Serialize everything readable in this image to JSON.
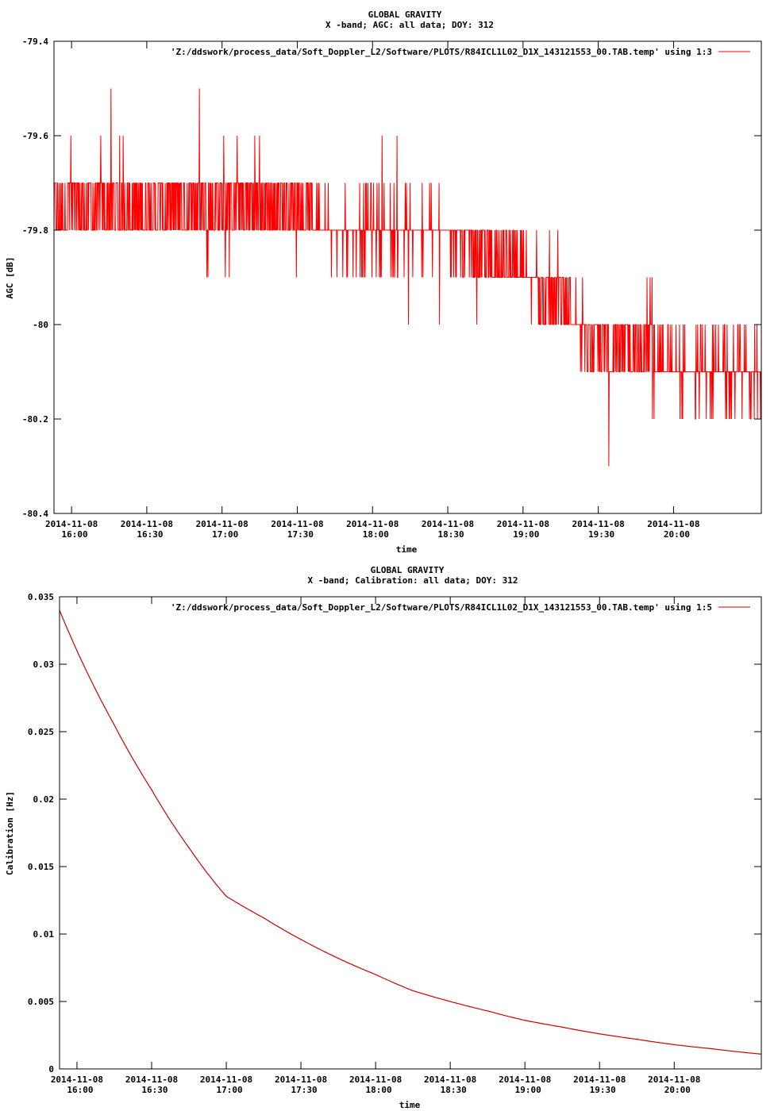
{
  "chart_data": [
    {
      "type": "line",
      "title": "GLOBAL GRAVITY",
      "subtitle": "X -band; AGC: all data; DOY: 312",
      "xlabel": "time",
      "ylabel": "AGC [dB]",
      "ylim": [
        -80.4,
        -79.4
      ],
      "y_ticks": [
        "-79.4",
        "-79.6",
        "-79.8",
        "-80",
        "-80.2",
        "-80.4"
      ],
      "y_tick_values": [
        -79.4,
        -79.6,
        -79.8,
        -80.0,
        -80.2,
        -80.4
      ],
      "xlim": [
        "2014-11-08 15:53",
        "2014-11-08 20:35"
      ],
      "x_tick_times": [
        "2014-11-08 16:00",
        "2014-11-08 16:30",
        "2014-11-08 17:00",
        "2014-11-08 17:30",
        "2014-11-08 18:00",
        "2014-11-08 18:30",
        "2014-11-08 19:00",
        "2014-11-08 19:30",
        "2014-11-08 20:00"
      ],
      "x_tick_dates": [
        "2014-11-08",
        "2014-11-08",
        "2014-11-08",
        "2014-11-08",
        "2014-11-08",
        "2014-11-08",
        "2014-11-08",
        "2014-11-08",
        "2014-11-08"
      ],
      "x_tick_hours": [
        "16:00",
        "16:30",
        "17:00",
        "17:30",
        "18:00",
        "18:30",
        "19:00",
        "19:30",
        "20:00"
      ],
      "legend": "'Z:/ddswork/process_data/Soft_Doppler_L2/Software/PLOTS/R84ICL1L02_D1X_143121553_00.TAB.temp' using 1:3",
      "legend_position": "top-right",
      "grid": false,
      "series_color": "#ff0000",
      "series": [
        {
          "x": [
            "15:53",
            "16:00",
            "16:15",
            "16:30",
            "16:45",
            "17:00",
            "17:15",
            "17:30",
            "17:45",
            "18:00",
            "18:15",
            "18:30",
            "18:45",
            "19:00",
            "19:15",
            "19:30",
            "19:45",
            "20:00",
            "20:15",
            "20:35"
          ],
          "values": [
            -79.75,
            -79.75,
            -79.75,
            -79.75,
            -79.75,
            -79.75,
            -79.75,
            -79.75,
            -79.8,
            -79.8,
            -79.8,
            -79.8,
            -79.85,
            -79.9,
            -79.95,
            -80.05,
            -80.05,
            -80.1,
            -80.1,
            -80.1
          ],
          "low": [
            -79.9,
            -79.9,
            -79.9,
            -79.9,
            -79.9,
            -79.9,
            -79.9,
            -79.9,
            -79.9,
            -79.95,
            -80.0,
            -80.0,
            -80.0,
            -80.1,
            -80.2,
            -80.3,
            -80.3,
            -80.3,
            -80.3,
            -80.3
          ],
          "high": [
            -79.6,
            -79.5,
            -79.5,
            -79.5,
            -79.5,
            -79.5,
            -79.6,
            -79.6,
            -79.6,
            -79.6,
            -79.6,
            -79.7,
            -79.7,
            -79.7,
            -79.8,
            -79.8,
            -79.8,
            -79.9,
            -79.9,
            -79.9
          ]
        }
      ]
    },
    {
      "type": "line",
      "title": "GLOBAL GRAVITY",
      "subtitle": "X -band; Calibration: all data; DOY: 312",
      "xlabel": "time",
      "ylabel": "Calibration [Hz]",
      "ylim": [
        0,
        0.035
      ],
      "y_ticks": [
        "0.035",
        "0.03",
        "0.025",
        "0.02",
        "0.015",
        "0.01",
        "0.005",
        "0"
      ],
      "y_tick_values": [
        0.035,
        0.03,
        0.025,
        0.02,
        0.015,
        0.01,
        0.005,
        0
      ],
      "xlim": [
        "2014-11-08 15:53",
        "2014-11-08 20:35"
      ],
      "x_tick_times": [
        "2014-11-08 16:00",
        "2014-11-08 16:30",
        "2014-11-08 17:00",
        "2014-11-08 17:30",
        "2014-11-08 18:00",
        "2014-11-08 18:30",
        "2014-11-08 19:00",
        "2014-11-08 19:30",
        "2014-11-08 20:00"
      ],
      "x_tick_dates": [
        "2014-11-08",
        "2014-11-08",
        "2014-11-08",
        "2014-11-08",
        "2014-11-08",
        "2014-11-08",
        "2014-11-08",
        "2014-11-08",
        "2014-11-08"
      ],
      "x_tick_hours": [
        "16:00",
        "16:30",
        "17:00",
        "17:30",
        "18:00",
        "18:30",
        "19:00",
        "19:30",
        "20:00"
      ],
      "legend": "'Z:/ddswork/process_data/Soft_Doppler_L2/Software/PLOTS/R84ICL1L02_D1X_143121553_00.TAB.temp' using 1:5",
      "legend_position": "top-right",
      "grid": false,
      "series_color": "#cc0000",
      "series": [
        {
          "x": [
            "15:53",
            "16:00",
            "16:15",
            "16:30",
            "16:45",
            "17:00",
            "17:15",
            "17:30",
            "17:45",
            "18:00",
            "18:15",
            "18:30",
            "18:45",
            "19:00",
            "19:15",
            "19:30",
            "19:45",
            "20:00",
            "20:15",
            "20:35"
          ],
          "values": [
            0.034,
            0.031,
            0.0255,
            0.0207,
            0.0164,
            0.0128,
            0.0112,
            0.0096,
            0.0082,
            0.007,
            0.0058,
            0.005,
            0.0043,
            0.0036,
            0.0031,
            0.0026,
            0.0022,
            0.0018,
            0.0015,
            0.0011
          ]
        }
      ]
    }
  ]
}
